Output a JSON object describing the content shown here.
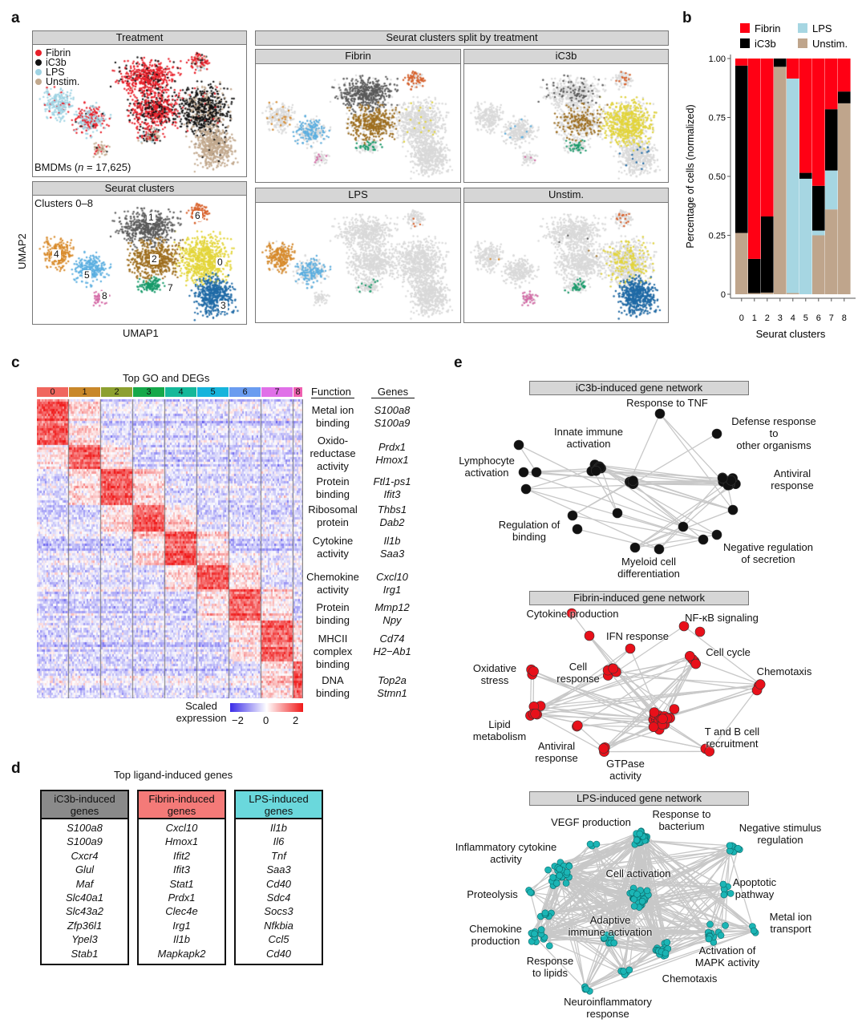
{
  "panels": {
    "a": "a",
    "b": "b",
    "c": "c",
    "d": "d",
    "e": "e"
  },
  "panel_a": {
    "treatment_title": "Treatment",
    "treatment_legend": [
      {
        "label": "Fibrin",
        "color": "#e8202a"
      },
      {
        "label": "iC3b",
        "color": "#111111"
      },
      {
        "label": "LPS",
        "color": "#9fd3e3"
      },
      {
        "label": "Unstim.",
        "color": "#c2a98e"
      }
    ],
    "bmdm_note_prefix": "BMDMs (",
    "bmdm_note_n": "n",
    "bmdm_note_suffix": " = 17,625)",
    "clusters_title": "Seurat clusters",
    "clusters_sub": "Clusters 0–8",
    "cluster_labels": [
      "0",
      "1",
      "2",
      "3",
      "4",
      "5",
      "6",
      "7",
      "8"
    ],
    "cluster_colors": [
      "#e3d53a",
      "#5a5a5a",
      "#9e6e1e",
      "#1f6aa6",
      "#d88a2a",
      "#5aaee0",
      "#d8602a",
      "#179a6a",
      "#d46aa6"
    ],
    "split_title": "Seurat clusters split by treatment",
    "split_panels": [
      "Fibrin",
      "iC3b",
      "LPS",
      "Unstim."
    ],
    "ylabel": "UMAP2",
    "xlabel": "UMAP1"
  },
  "chart_data": {
    "type": "bar",
    "stacked": true,
    "categories": [
      "0",
      "1",
      "2",
      "3",
      "4",
      "5",
      "6",
      "7",
      "8"
    ],
    "series": [
      {
        "name": "Unstim.",
        "color": "#bfa58c",
        "values": [
          0.26,
          0.005,
          0.007,
          0.965,
          0.005,
          0.0,
          0.25,
          0.36,
          0.81
        ]
      },
      {
        "name": "LPS",
        "color": "#a6d6e2",
        "values": [
          0.0,
          0.0,
          0.0,
          0.0,
          0.91,
          0.49,
          0.02,
          0.165,
          0.0
        ]
      },
      {
        "name": "iC3b",
        "color": "#000000",
        "values": [
          0.71,
          0.145,
          0.323,
          0.035,
          0.0,
          0.025,
          0.19,
          0.26,
          0.05
        ]
      },
      {
        "name": "Fibrin",
        "color": "#ff0014",
        "values": [
          0.03,
          0.85,
          0.67,
          0.0,
          0.085,
          0.485,
          0.54,
          0.215,
          0.14
        ]
      }
    ],
    "xlabel": "Seurat clusters",
    "ylabel": "Percentage of cells (normalized)",
    "ylim": [
      0,
      1
    ],
    "yticks": [
      "0",
      "0.25",
      "0.50",
      "0.75",
      "1.00"
    ],
    "legend": "top"
  },
  "panel_c": {
    "title": "Top GO and DEGs",
    "clusters": [
      "0",
      "1",
      "2",
      "3",
      "4",
      "5",
      "6",
      "7",
      "8"
    ],
    "cluster_colors": [
      "#f0665e",
      "#c9882a",
      "#8da030",
      "#16a84a",
      "#15b89a",
      "#16b4dc",
      "#6a9cf0",
      "#e070e8",
      "#f060b0"
    ],
    "function_header": "Function",
    "genes_header": "Genes",
    "rows": [
      {
        "function": "Metal ion\nbinding",
        "genes": "S100a8\nS100a9"
      },
      {
        "function": "Oxido-\nreductase\nactivity",
        "genes": "Prdx1\nHmox1"
      },
      {
        "function": "Protein\nbinding",
        "genes": "Ftl1-ps1\nIfit3"
      },
      {
        "function": "Ribosomal\nprotein",
        "genes": "Thbs1\nDab2"
      },
      {
        "function": "Cytokine\nactivity",
        "genes": "Il1b\nSaa3"
      },
      {
        "function": "Chemokine\nactivity",
        "genes": "Cxcl10\nIrg1"
      },
      {
        "function": "Protein\nbinding",
        "genes": "Mmp12\nNpy"
      },
      {
        "function": "MHCII\ncomplex\nbinding",
        "genes": "Cd74\nH2−Ab1"
      },
      {
        "function": "DNA\nbinding",
        "genes": "Top2a\nStmn1"
      }
    ],
    "scale_label": "Scaled\nexpression",
    "scale_ticks": [
      "−2",
      "0",
      "2"
    ],
    "scale_colors": [
      "#3a2be8",
      "#ffffff",
      "#f01818"
    ]
  },
  "panel_d": {
    "title": "Top ligand-induced genes",
    "tables": [
      {
        "header": "iC3b-induced\ngenes",
        "color": "#8a8a8a",
        "genes": [
          "S100a8",
          "S100a9",
          "Cxcr4",
          "Glul",
          "Maf",
          "Slc40a1",
          "Slc43a2",
          "Zfp36l1",
          "Ypel3",
          "Stab1"
        ]
      },
      {
        "header": "Fibrin-induced\ngenes",
        "color": "#f47a78",
        "genes": [
          "Cxcl10",
          "Hmox1",
          "Ifit2",
          "Ifit3",
          "Stat1",
          "Prdx1",
          "Clec4e",
          "Irg1",
          "Il1b",
          "Mapkapk2"
        ]
      },
      {
        "header": "LPS-induced\ngenes",
        "color": "#6ad8dc",
        "genes": [
          "Il1b",
          "Il6",
          "Tnf",
          "Saa3",
          "Cd40",
          "Sdc4",
          "Socs3",
          "Nfkbia",
          "Ccl5",
          "Cd40"
        ]
      }
    ]
  },
  "panel_e": {
    "networks": [
      {
        "title": "iC3b-induced gene network",
        "node_color": "#111111",
        "labels": [
          "Response to TNF",
          "Defense response to\nother organisms",
          "Innate immune\nactivation",
          "Lymphocyte\nactivation",
          "Antiviral\nresponse",
          "Regulation of\nbinding",
          "Negative regulation\nof secretion",
          "Myeloid cell\ndifferentiation"
        ]
      },
      {
        "title": "Fibrin-induced gene network",
        "node_color": "#e8101a",
        "labels": [
          "Cytokine production",
          "NF-κB signaling",
          "IFN response",
          "Cell cycle",
          "Chemotaxis",
          "Oxidative\nstress",
          "Cell\nresponse",
          "Lipid\nmetabolism",
          "Antiviral\nresponse",
          "T and B cell\nrecruitment",
          "GTPase\nactivity"
        ]
      },
      {
        "title": "LPS-induced gene network",
        "node_color": "#1bb5b5",
        "labels": [
          "Response to\nbacterium",
          "VEGF production",
          "Negative stimulus\nregulation",
          "Inflammatory cytokine\nactivity",
          "Cell activation",
          "Apoptotic\npathway",
          "Proteolysis",
          "Metal ion\ntransport",
          "Adaptive\nimmune activation",
          "Chemokine\nproduction",
          "Activation of\nMAPK activity",
          "Response\nto lipids",
          "Chemotaxis",
          "Neuroinflammatory\nresponse"
        ]
      }
    ]
  }
}
